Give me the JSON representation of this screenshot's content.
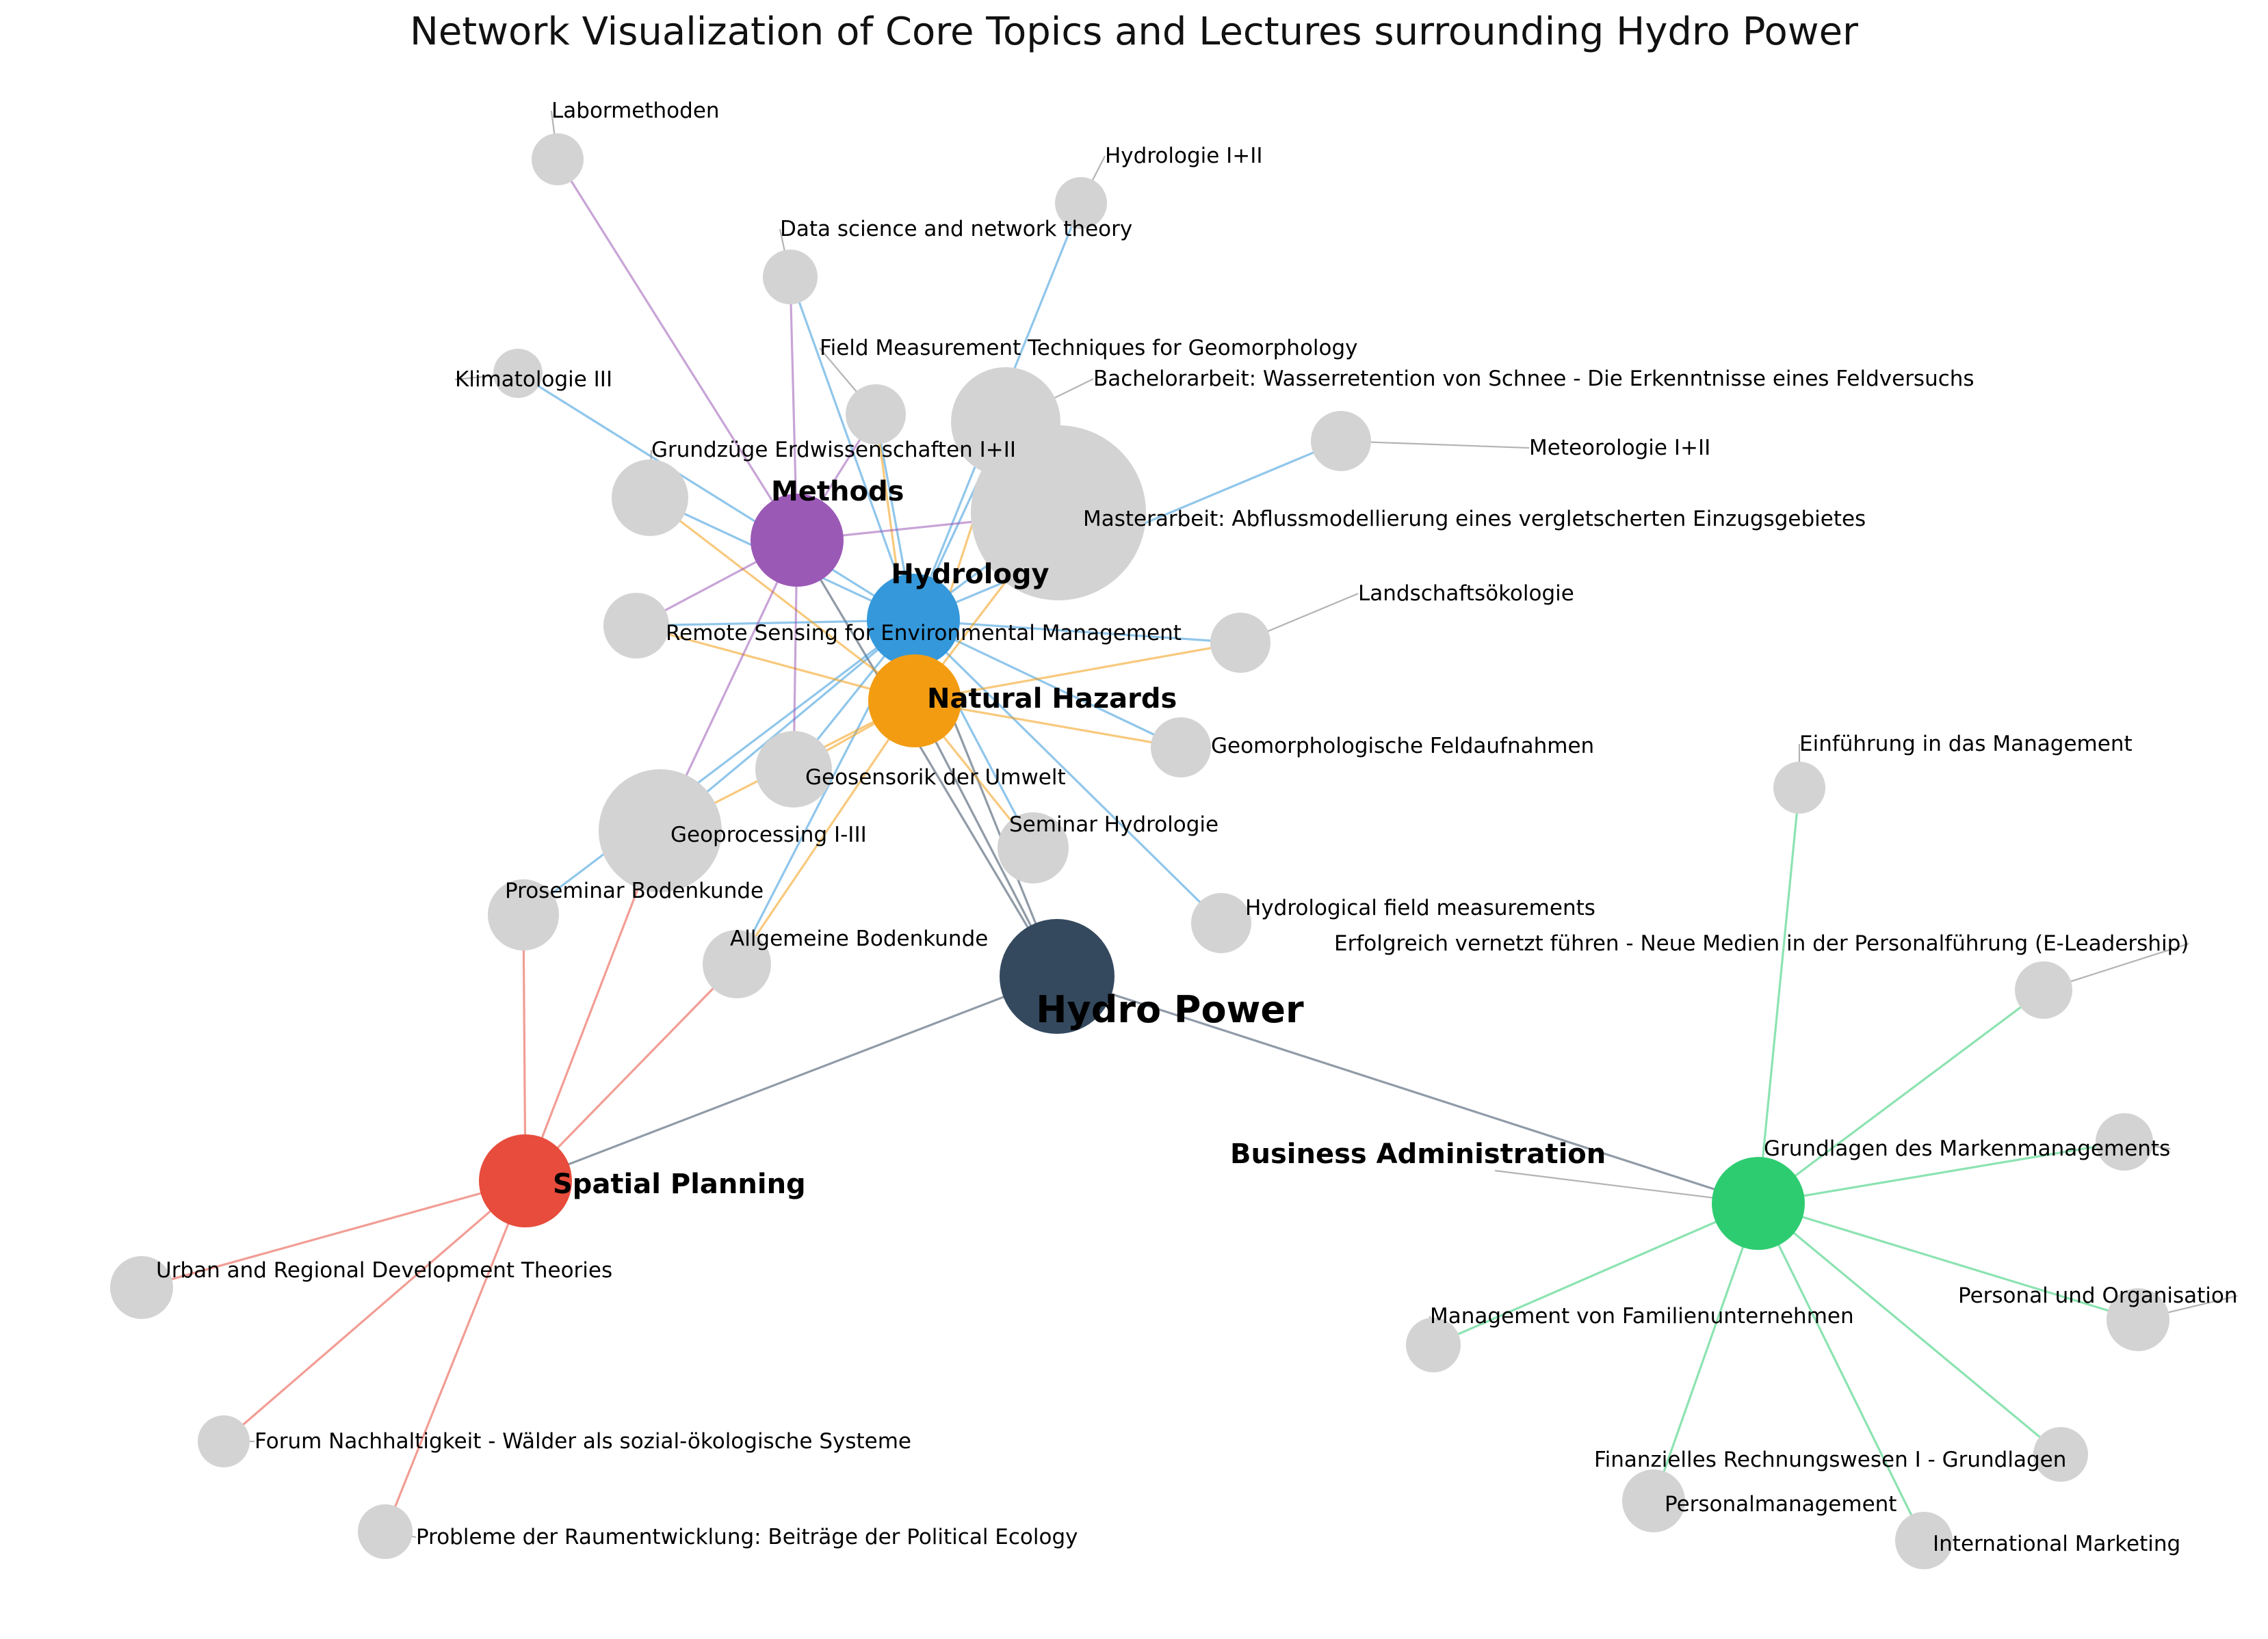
{
  "title": "Network Visualization of Core Topics and Lectures surrounding Hydro Power",
  "colors": {
    "hydro_power": "#34495e",
    "hydrology": "#3498db",
    "natural_hazards": "#f39c12",
    "methods": "#9b59b6",
    "spatial_planning": "#e74c3c",
    "business_administration": "#2ecc71",
    "lecture": "#d3d3d3",
    "leader": "#999999"
  },
  "nodes": [
    {
      "id": "hp",
      "label": "Hydro Power",
      "type": "root",
      "color": "hydro_power"
    },
    {
      "id": "hyd",
      "label": "Hydrology",
      "type": "core",
      "color": "hydrology"
    },
    {
      "id": "nh",
      "label": "Natural Hazards",
      "type": "core",
      "color": "natural_hazards"
    },
    {
      "id": "met",
      "label": "Methods",
      "type": "core",
      "color": "methods"
    },
    {
      "id": "sp",
      "label": "Spatial Planning",
      "type": "core",
      "color": "spatial_planning"
    },
    {
      "id": "ba",
      "label": "Business Administration",
      "type": "core",
      "color": "business_administration"
    },
    {
      "id": "labor",
      "label": "Labormethoden",
      "type": "lecture"
    },
    {
      "id": "hyd12",
      "label": "Hydrologie I+II",
      "type": "lecture"
    },
    {
      "id": "dsnt",
      "label": "Data science and network theory",
      "type": "lecture"
    },
    {
      "id": "fmtg",
      "label": "Field Measurement Techniques for Geomorphology",
      "type": "lecture"
    },
    {
      "id": "bach",
      "label": "Bachelorarbeit: Wasserretention von Schnee - Die Erkenntnisse eines Feldversuchs",
      "type": "lecture"
    },
    {
      "id": "klima",
      "label": "Klimatologie III",
      "type": "lecture"
    },
    {
      "id": "meteo",
      "label": "Meteorologie I+II",
      "type": "lecture"
    },
    {
      "id": "gze",
      "label": "Grundzüge Erdwissenschaften I+II",
      "type": "lecture"
    },
    {
      "id": "master",
      "label": "Masterarbeit: Abflussmodellierung eines vergletscherten Einzugsgebietes",
      "type": "lecture"
    },
    {
      "id": "rs",
      "label": "Remote Sensing for Environmental Management",
      "type": "lecture"
    },
    {
      "id": "land",
      "label": "Landschaftsökologie",
      "type": "lecture"
    },
    {
      "id": "geomf",
      "label": "Geomorphologische Feldaufnahmen",
      "type": "lecture"
    },
    {
      "id": "geosens",
      "label": "Geosensorik der Umwelt",
      "type": "lecture"
    },
    {
      "id": "semhyd",
      "label": "Seminar Hydrologie",
      "type": "lecture"
    },
    {
      "id": "geoproc",
      "label": "Geoprocessing I-III",
      "type": "lecture"
    },
    {
      "id": "prosem",
      "label": "Proseminar Bodenkunde",
      "type": "lecture"
    },
    {
      "id": "hfm",
      "label": "Hydrological field measurements",
      "type": "lecture"
    },
    {
      "id": "allgb",
      "label": "Allgemeine Bodenkunde",
      "type": "lecture"
    },
    {
      "id": "urban",
      "label": "Urban and Regional Development Theories",
      "type": "lecture"
    },
    {
      "id": "forum",
      "label": "Forum Nachhaltigkeit - Wälder als sozial-ökologische Systeme",
      "type": "lecture"
    },
    {
      "id": "probl",
      "label": "Probleme der Raumentwicklung: Beiträge der Political Ecology",
      "type": "lecture"
    },
    {
      "id": "einf",
      "label": "Einführung in das Management",
      "type": "lecture"
    },
    {
      "id": "elead",
      "label": "Erfolgreich vernetzt führen - Neue Medien in der Personalführung (E-Leadership)",
      "type": "lecture"
    },
    {
      "id": "marken",
      "label": "Grundlagen des Markenmanagements",
      "type": "lecture"
    },
    {
      "id": "perso",
      "label": "Personal und Organisation",
      "type": "lecture"
    },
    {
      "id": "famil",
      "label": "Management von Familienunternehmen",
      "type": "lecture"
    },
    {
      "id": "finanz",
      "label": "Finanzielles Rechnungswesen I - Grundlagen",
      "type": "lecture"
    },
    {
      "id": "persm",
      "label": "Personalmanagement",
      "type": "lecture"
    },
    {
      "id": "intm",
      "label": "International Marketing",
      "type": "lecture"
    }
  ],
  "edges": [
    [
      "hp",
      "hyd"
    ],
    [
      "hp",
      "nh"
    ],
    [
      "hp",
      "met"
    ],
    [
      "hp",
      "sp"
    ],
    [
      "hp",
      "ba"
    ],
    [
      "hyd",
      "hyd12"
    ],
    [
      "hyd",
      "dsnt"
    ],
    [
      "hyd",
      "fmtg"
    ],
    [
      "hyd",
      "bach"
    ],
    [
      "hyd",
      "klima"
    ],
    [
      "hyd",
      "meteo"
    ],
    [
      "hyd",
      "gze"
    ],
    [
      "hyd",
      "master"
    ],
    [
      "hyd",
      "rs"
    ],
    [
      "hyd",
      "land"
    ],
    [
      "hyd",
      "geomf"
    ],
    [
      "hyd",
      "geosens"
    ],
    [
      "hyd",
      "semhyd"
    ],
    [
      "hyd",
      "geoproc"
    ],
    [
      "hyd",
      "prosem"
    ],
    [
      "hyd",
      "hfm"
    ],
    [
      "hyd",
      "allgb"
    ],
    [
      "nh",
      "fmtg"
    ],
    [
      "nh",
      "bach"
    ],
    [
      "nh",
      "gze"
    ],
    [
      "nh",
      "master"
    ],
    [
      "nh",
      "rs"
    ],
    [
      "nh",
      "land"
    ],
    [
      "nh",
      "geomf"
    ],
    [
      "nh",
      "geosens"
    ],
    [
      "nh",
      "semhyd"
    ],
    [
      "nh",
      "geoproc"
    ],
    [
      "nh",
      "allgb"
    ],
    [
      "met",
      "labor"
    ],
    [
      "met",
      "dsnt"
    ],
    [
      "met",
      "fmtg"
    ],
    [
      "met",
      "master"
    ],
    [
      "met",
      "rs"
    ],
    [
      "met",
      "geosens"
    ],
    [
      "met",
      "geoproc"
    ],
    [
      "sp",
      "geoproc"
    ],
    [
      "sp",
      "prosem"
    ],
    [
      "sp",
      "allgb"
    ],
    [
      "sp",
      "urban"
    ],
    [
      "sp",
      "forum"
    ],
    [
      "sp",
      "probl"
    ],
    [
      "ba",
      "einf"
    ],
    [
      "ba",
      "elead"
    ],
    [
      "ba",
      "marken"
    ],
    [
      "ba",
      "perso"
    ],
    [
      "ba",
      "famil"
    ],
    [
      "ba",
      "finanz"
    ],
    [
      "ba",
      "persm"
    ],
    [
      "ba",
      "intm"
    ]
  ]
}
